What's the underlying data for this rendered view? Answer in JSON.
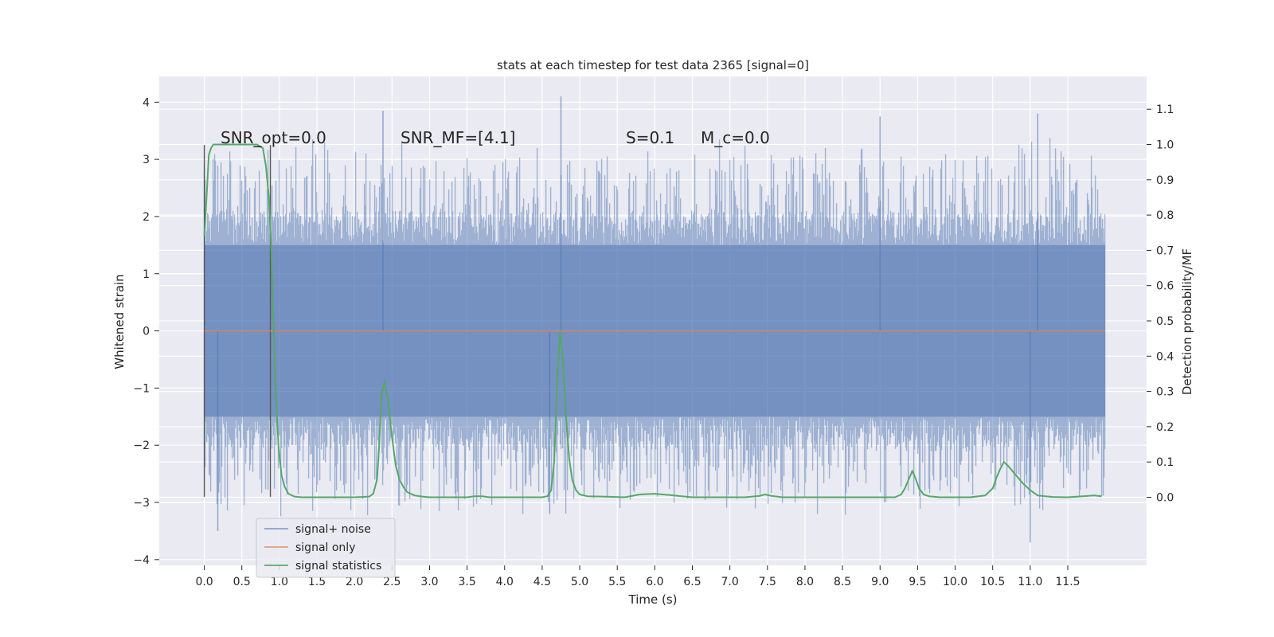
{
  "chart_data": {
    "type": "line",
    "title": "stats at each timestep for test data 2365 [signal=0]",
    "xlabel": "Time (s)",
    "ylabel_left": "Whitened strain",
    "ylabel_right": "Detection probability/MF",
    "xlim": [
      -0.6,
      12.55
    ],
    "ylim_left": [
      -4.1,
      4.45
    ],
    "ylim_right": [
      -0.193,
      1.193
    ],
    "x_ticks": [
      "0.0",
      "0.5",
      "1.0",
      "1.5",
      "2.0",
      "2.5",
      "3.0",
      "3.5",
      "4.0",
      "4.5",
      "5.0",
      "5.5",
      "6.0",
      "6.5",
      "7.0",
      "7.5",
      "8.0",
      "8.5",
      "9.0",
      "9.5",
      "10.0",
      "10.5",
      "11.0",
      "11.5"
    ],
    "y_ticks_left": [
      "−4",
      "−3",
      "−2",
      "−1",
      "0",
      "1",
      "2",
      "3",
      "4"
    ],
    "y_ticks_right": [
      "0.0",
      "0.1",
      "0.2",
      "0.3",
      "0.4",
      "0.5",
      "0.6",
      "0.7",
      "0.8",
      "0.9",
      "1.0",
      "1.1"
    ],
    "grid": true,
    "legend_position": "lower-left",
    "annotations": {
      "snr_opt": "SNR_opt=0.0",
      "snr_mf": "SNR_MF=[4.1]",
      "s": "S=0.1",
      "mc": "M_c=0.0"
    },
    "markers": [
      {
        "x": 0.0,
        "y_range": [
          -2.9,
          3.25
        ]
      },
      {
        "x": 0.88,
        "y_range": [
          -2.9,
          3.25
        ]
      }
    ],
    "series": [
      {
        "name": "signal+ noise",
        "color": "#4c72b0",
        "x_range": [
          0.0,
          12.0
        ],
        "core_range": [
          -1.5,
          1.5
        ],
        "peak_range": [
          -3.7,
          4.1
        ],
        "notable_peaks": [
          {
            "x": 0.18,
            "y": -3.5
          },
          {
            "x": 2.38,
            "y": 3.85
          },
          {
            "x": 4.6,
            "y": -3.2
          },
          {
            "x": 4.75,
            "y": 4.1
          },
          {
            "x": 9.0,
            "y": 3.75
          },
          {
            "x": 11.1,
            "y": 3.8
          },
          {
            "x": 11.0,
            "y": -3.7
          }
        ]
      },
      {
        "name": "signal only",
        "color": "#dd8452",
        "x": [
          0.0,
          12.0
        ],
        "y": [
          0.0,
          0.0
        ]
      },
      {
        "name": "signal statistics",
        "color": "#55a868",
        "axis": "right",
        "x": [
          0.0,
          0.03,
          0.06,
          0.09,
          0.12,
          0.18,
          0.25,
          0.35,
          0.5,
          0.62,
          0.7,
          0.78,
          0.82,
          0.86,
          0.89,
          0.92,
          0.95,
          0.99,
          1.03,
          1.07,
          1.12,
          1.2,
          1.3,
          1.5,
          1.8,
          2.0,
          2.2,
          2.25,
          2.3,
          2.33,
          2.36,
          2.4,
          2.45,
          2.5,
          2.55,
          2.6,
          2.65,
          2.7,
          2.8,
          2.9,
          3.0,
          3.2,
          3.4,
          3.5,
          3.6,
          3.7,
          3.8,
          4.0,
          4.2,
          4.4,
          4.5,
          4.57,
          4.62,
          4.66,
          4.7,
          4.74,
          4.78,
          4.82,
          4.86,
          4.9,
          4.95,
          5.0,
          5.1,
          5.3,
          5.6,
          5.8,
          6.0,
          6.2,
          6.5,
          6.8,
          7.0,
          7.2,
          7.4,
          7.47,
          7.55,
          7.7,
          8.0,
          8.5,
          9.0,
          9.2,
          9.28,
          9.33,
          9.38,
          9.43,
          9.48,
          9.52,
          9.58,
          9.65,
          9.8,
          10.0,
          10.2,
          10.4,
          10.5,
          10.55,
          10.6,
          10.65,
          10.7,
          10.8,
          10.9,
          11.0,
          11.1,
          11.2,
          11.3,
          11.5,
          11.7,
          11.85,
          11.95
        ],
        "y": [
          0.74,
          0.85,
          0.97,
          0.99,
          1.0,
          1.0,
          1.0,
          1.0,
          1.0,
          1.0,
          1.0,
          0.99,
          0.94,
          0.85,
          0.71,
          0.5,
          0.3,
          0.14,
          0.06,
          0.03,
          0.01,
          0.002,
          0.0,
          0.0,
          0.0,
          0.0,
          0.002,
          0.01,
          0.05,
          0.15,
          0.29,
          0.33,
          0.27,
          0.17,
          0.09,
          0.05,
          0.03,
          0.015,
          0.005,
          0.002,
          0.0,
          0.0,
          0.0,
          0.0,
          0.003,
          0.003,
          0.0,
          0.0,
          0.0,
          0.0,
          0.0,
          0.003,
          0.02,
          0.1,
          0.33,
          0.47,
          0.38,
          0.22,
          0.11,
          0.05,
          0.02,
          0.008,
          0.003,
          0.002,
          0.0,
          0.008,
          0.01,
          0.006,
          0.0,
          0.0,
          0.0,
          0.0,
          0.004,
          0.008,
          0.004,
          0.0,
          0.0,
          0.0,
          0.0,
          0.0,
          0.008,
          0.025,
          0.05,
          0.075,
          0.05,
          0.025,
          0.008,
          0.003,
          0.0,
          0.0,
          0.0,
          0.005,
          0.025,
          0.055,
          0.08,
          0.1,
          0.09,
          0.065,
          0.04,
          0.02,
          0.005,
          0.003,
          0.001,
          0.0,
          0.003,
          0.005,
          0.003
        ]
      }
    ]
  }
}
